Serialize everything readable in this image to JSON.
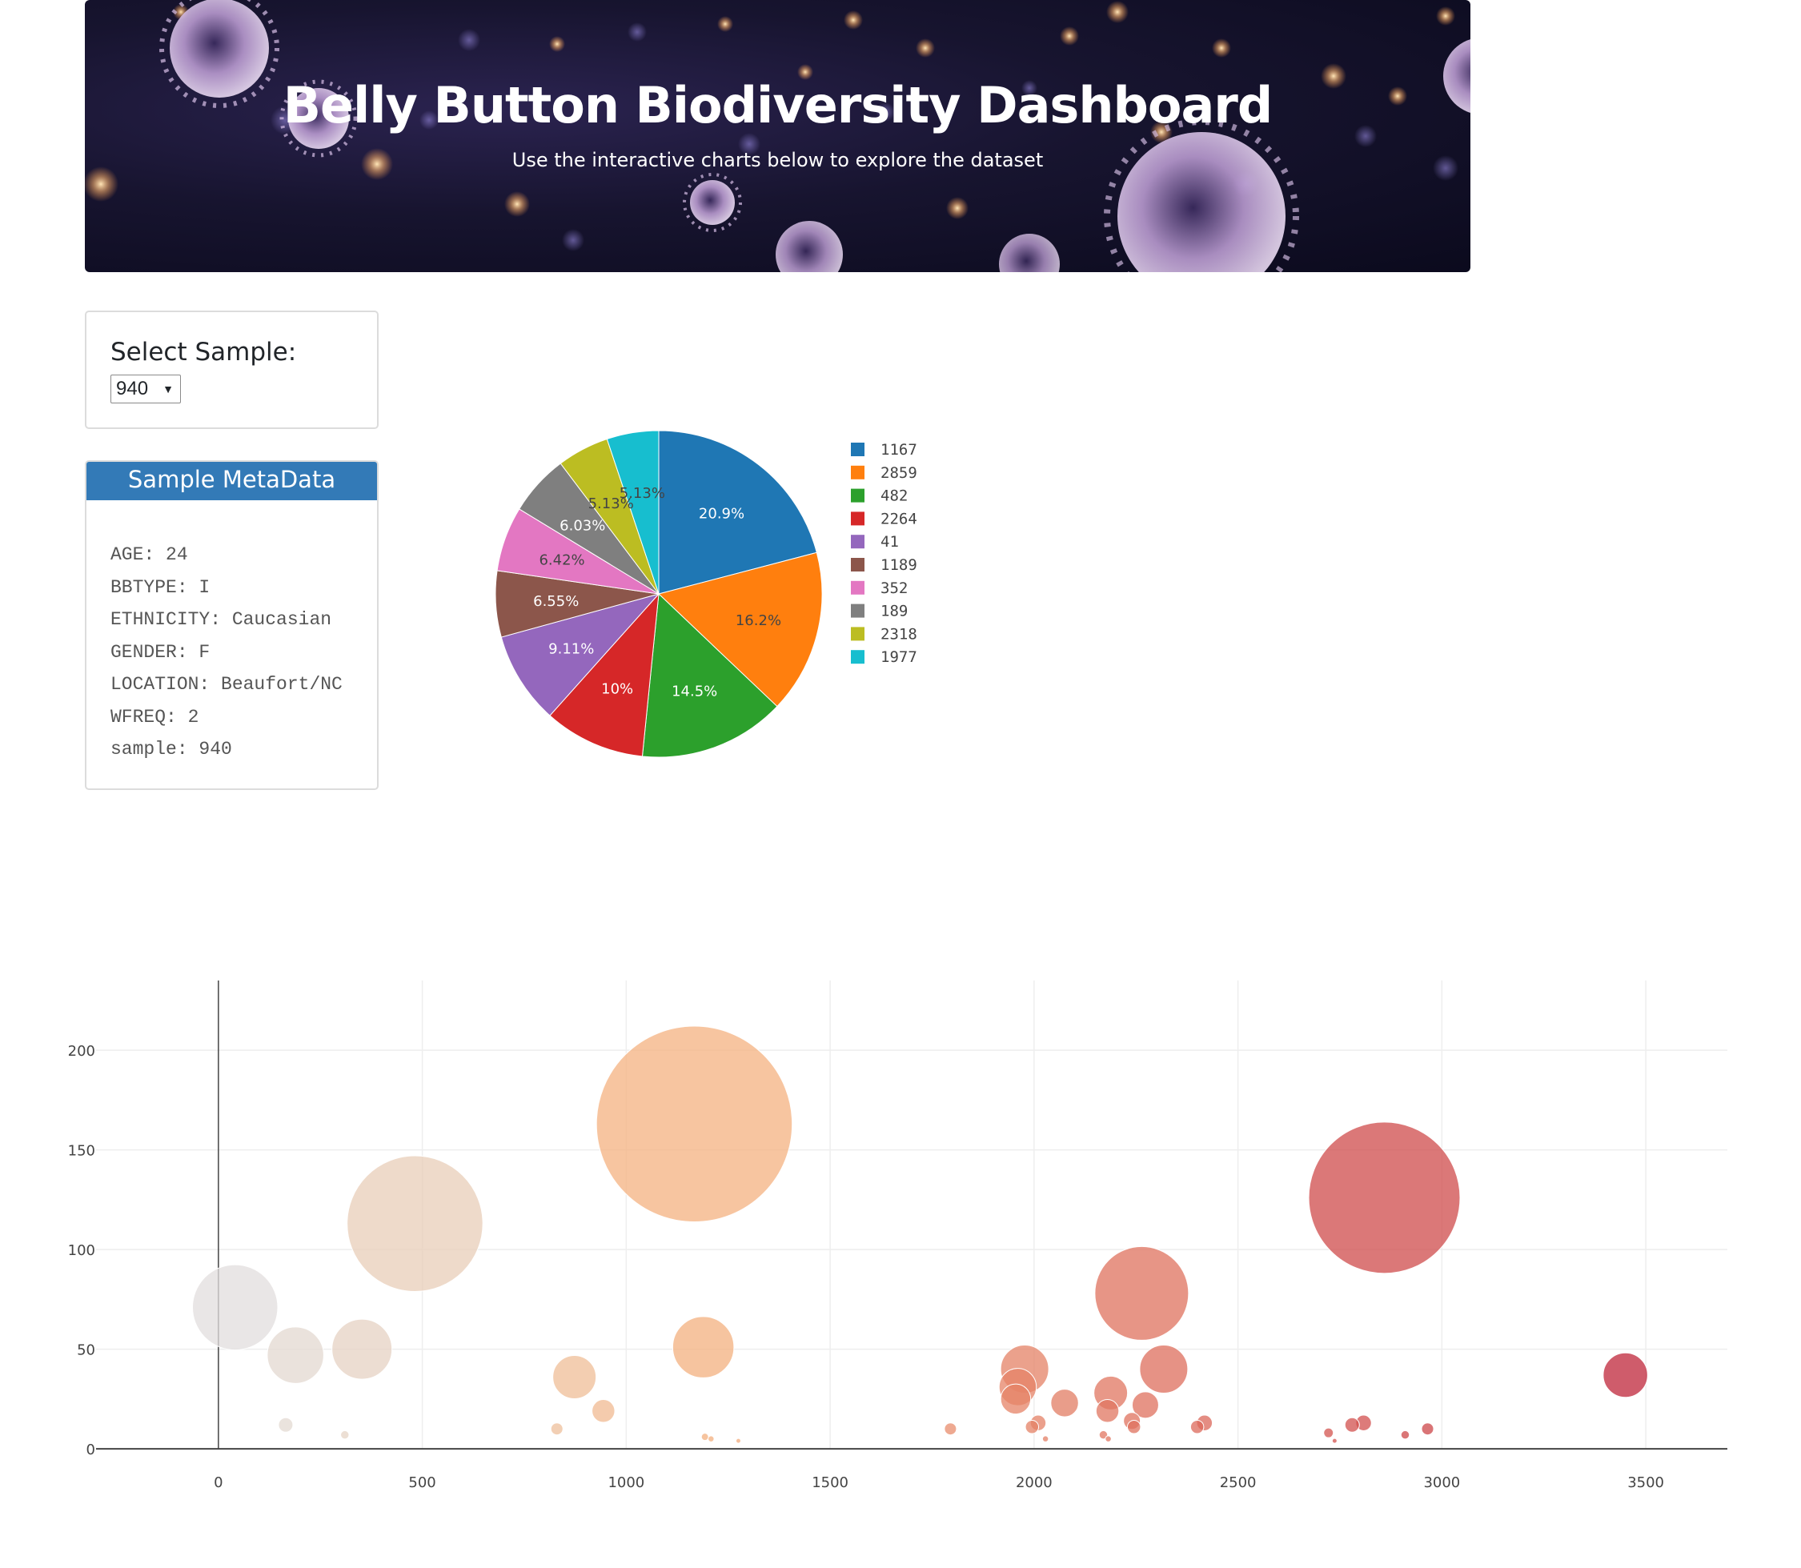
{
  "header": {
    "title": "Belly Button Biodiversity Dashboard",
    "subtitle": "Use the interactive charts below to explore the dataset"
  },
  "selector": {
    "label": "Select Sample:",
    "selected_value": "940"
  },
  "metadata": {
    "heading": "Sample MetaData",
    "lines": [
      "AGE: 24",
      "BBTYPE: I",
      "ETHNICITY: Caucasian",
      "GENDER: F",
      "LOCATION: Beaufort/NC",
      "WFREQ: 2",
      "sample: 940"
    ]
  },
  "colors": {
    "pie": [
      "#1f77b4",
      "#ff7f0e",
      "#2ca02c",
      "#d62728",
      "#9467bd",
      "#8c564b",
      "#e377c2",
      "#7f7f7f",
      "#bcbd22",
      "#17becf"
    ],
    "metadata_header": "#337ab7"
  },
  "chart_data": [
    {
      "type": "pie",
      "labels": [
        "1167",
        "2859",
        "482",
        "2264",
        "41",
        "1189",
        "352",
        "189",
        "2318",
        "1977"
      ],
      "values": [
        163,
        126,
        113,
        78,
        71,
        51,
        50,
        47,
        40,
        40
      ],
      "percent_labels": [
        "20.9%",
        "16.2%",
        "14.5%",
        "10%",
        "9.11%",
        "6.55%",
        "6.42%",
        "6.03%",
        "5.13%",
        "5.13%"
      ],
      "legend_placement": "right"
    },
    {
      "type": "scatter",
      "mode": "bubble",
      "xlim": [
        -300,
        3700
      ],
      "ylim": [
        -10,
        235
      ],
      "x_ticks": [
        "0",
        "500",
        "1000",
        "1500",
        "2000",
        "2500",
        "3000",
        "3500"
      ],
      "y_ticks": [
        "0",
        "50",
        "100",
        "150",
        "200"
      ],
      "grid": true,
      "points": [
        {
          "x": 41,
          "y": 71
        },
        {
          "x": 189,
          "y": 47
        },
        {
          "x": 352,
          "y": 50
        },
        {
          "x": 482,
          "y": 113
        },
        {
          "x": 165,
          "y": 12
        },
        {
          "x": 310,
          "y": 7
        },
        {
          "x": 830,
          "y": 10
        },
        {
          "x": 873,
          "y": 36
        },
        {
          "x": 944,
          "y": 19
        },
        {
          "x": 1167,
          "y": 163
        },
        {
          "x": 1189,
          "y": 51
        },
        {
          "x": 1193,
          "y": 6
        },
        {
          "x": 1208,
          "y": 5
        },
        {
          "x": 1275,
          "y": 4
        },
        {
          "x": 1795,
          "y": 10
        },
        {
          "x": 1977,
          "y": 40
        },
        {
          "x": 1960,
          "y": 31
        },
        {
          "x": 1955,
          "y": 25
        },
        {
          "x": 2010,
          "y": 13
        },
        {
          "x": 1995,
          "y": 11
        },
        {
          "x": 2075,
          "y": 23
        },
        {
          "x": 2028,
          "y": 5
        },
        {
          "x": 2188,
          "y": 28
        },
        {
          "x": 2180,
          "y": 19
        },
        {
          "x": 2170,
          "y": 7
        },
        {
          "x": 2182,
          "y": 5
        },
        {
          "x": 2240,
          "y": 14
        },
        {
          "x": 2245,
          "y": 11
        },
        {
          "x": 2264,
          "y": 78
        },
        {
          "x": 2273,
          "y": 22
        },
        {
          "x": 2318,
          "y": 40
        },
        {
          "x": 2400,
          "y": 11
        },
        {
          "x": 2418,
          "y": 13
        },
        {
          "x": 2722,
          "y": 8
        },
        {
          "x": 2737,
          "y": 4
        },
        {
          "x": 2780,
          "y": 12
        },
        {
          "x": 2808,
          "y": 13
        },
        {
          "x": 2859,
          "y": 126
        },
        {
          "x": 2910,
          "y": 7
        },
        {
          "x": 2965,
          "y": 10
        },
        {
          "x": 3450,
          "y": 37
        }
      ]
    }
  ]
}
